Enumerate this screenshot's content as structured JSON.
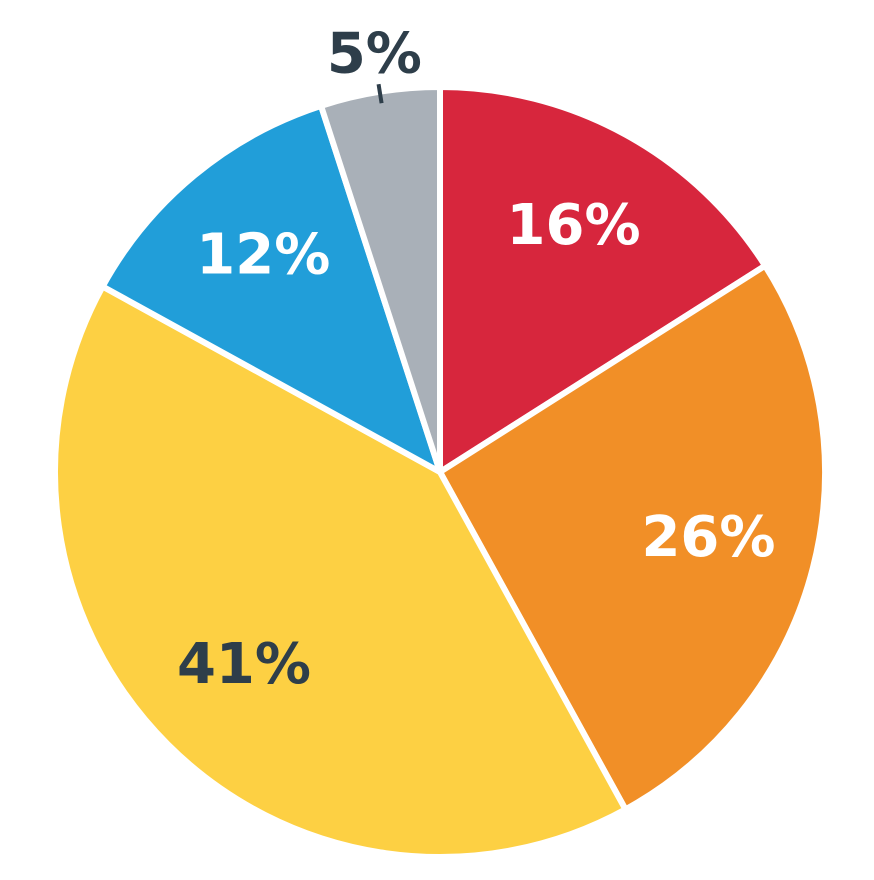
{
  "chart_data": {
    "type": "pie",
    "values": [
      16,
      26,
      41,
      12,
      5
    ],
    "value_labels": [
      "16%",
      "26%",
      "41%",
      "12%",
      "5%"
    ],
    "colors": [
      "#d7263d",
      "#f18f27",
      "#fdd043",
      "#219ed9",
      "#a9b0b8"
    ],
    "label_colors": [
      "#ffffff",
      "#ffffff",
      "#2e3e4a",
      "#ffffff",
      "#2e3e4a"
    ]
  }
}
